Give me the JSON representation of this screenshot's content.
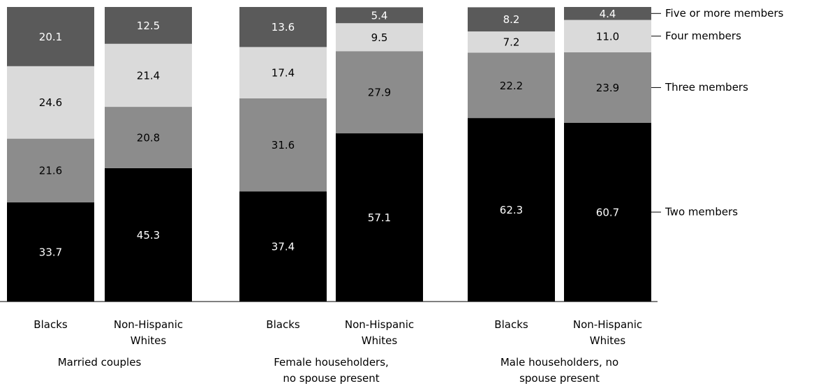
{
  "chart_data": {
    "type": "stacked_bar",
    "categories": [
      "Blacks",
      "Non-Hispanic Whites",
      "Blacks",
      "Non-Hispanic Whites",
      "Blacks",
      "Non-Hispanic Whites"
    ],
    "groups": [
      "Married couples",
      "Female householders, no spouse present",
      "Male householders, no spouse present"
    ],
    "ylim": [
      0,
      100
    ],
    "series": [
      {
        "name": "Two members",
        "color": "#000000",
        "values": [
          33.7,
          45.3,
          37.4,
          57.1,
          62.3,
          60.7
        ]
      },
      {
        "name": "Three members",
        "color": "#8c8c8c",
        "values": [
          21.6,
          20.8,
          31.6,
          27.9,
          22.2,
          23.9
        ]
      },
      {
        "name": "Four members",
        "color": "#dadada",
        "values": [
          24.6,
          21.4,
          17.4,
          9.5,
          7.2,
          11.0
        ],
        "value_labels": [
          "24.6",
          "21.4",
          "17.4",
          "9.5",
          "7.2",
          "11.0"
        ]
      },
      {
        "name": "Five or more members",
        "color": "#5a5a5a",
        "values": [
          20.1,
          12.5,
          13.6,
          5.4,
          8.2,
          4.4
        ]
      }
    ]
  }
}
